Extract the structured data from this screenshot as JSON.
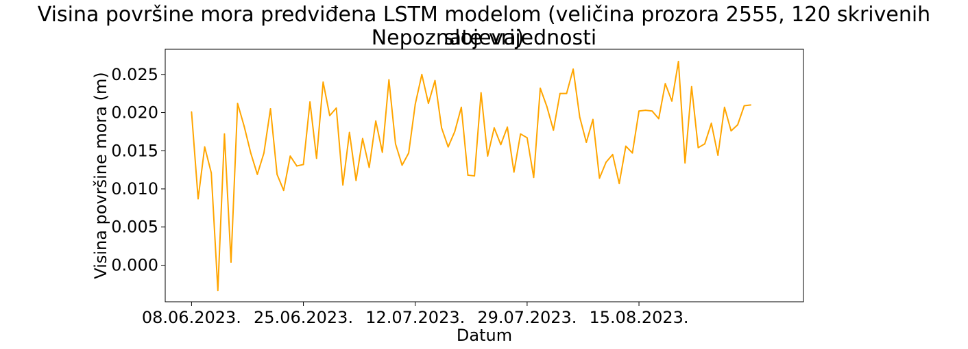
{
  "chart_data": {
    "type": "line",
    "title": "Visina površine mora predviđena LSTM modelom (veličina prozora 2555, 120 skrivenih slojeva)",
    "subtitle": "Nepoznate vrijednosti",
    "xlabel": "Datum",
    "ylabel": "Visina površine mora (m)",
    "x_start": "2023-06-08",
    "x_ticks": [
      {
        "date": "2023-06-08",
        "label": "08.06.2023."
      },
      {
        "date": "2023-06-25",
        "label": "25.06.2023."
      },
      {
        "date": "2023-07-12",
        "label": "12.07.2023."
      },
      {
        "date": "2023-07-29",
        "label": "29.07.2023."
      },
      {
        "date": "2023-08-15",
        "label": "15.08.2023."
      }
    ],
    "y_ticks": [
      {
        "value": 0.0,
        "label": "0.000"
      },
      {
        "value": 0.005,
        "label": "0.005"
      },
      {
        "value": 0.01,
        "label": "0.010"
      },
      {
        "value": 0.015,
        "label": "0.015"
      },
      {
        "value": 0.02,
        "label": "0.020"
      },
      {
        "value": 0.025,
        "label": "0.025"
      }
    ],
    "xlim": [
      "2023-06-04",
      "2023-09-09"
    ],
    "ylim": [
      -0.0048,
      0.0283
    ],
    "grid": false,
    "series": [
      {
        "color": "#FFA500",
        "x": [
          "2023-06-08",
          "2023-06-09",
          "2023-06-10",
          "2023-06-11",
          "2023-06-12",
          "2023-06-13",
          "2023-06-14",
          "2023-06-15",
          "2023-06-16",
          "2023-06-17",
          "2023-06-18",
          "2023-06-19",
          "2023-06-20",
          "2023-06-21",
          "2023-06-22",
          "2023-06-23",
          "2023-06-24",
          "2023-06-25",
          "2023-06-26",
          "2023-06-27",
          "2023-06-28",
          "2023-06-29",
          "2023-06-30",
          "2023-07-01",
          "2023-07-02",
          "2023-07-03",
          "2023-07-04",
          "2023-07-05",
          "2023-07-06",
          "2023-07-07",
          "2023-07-08",
          "2023-07-09",
          "2023-07-10",
          "2023-07-11",
          "2023-07-12",
          "2023-07-13",
          "2023-07-14",
          "2023-07-15",
          "2023-07-16",
          "2023-07-17",
          "2023-07-18",
          "2023-07-19",
          "2023-07-20",
          "2023-07-21",
          "2023-07-22",
          "2023-07-23",
          "2023-07-24",
          "2023-07-25",
          "2023-07-26",
          "2023-07-27",
          "2023-07-28",
          "2023-07-29",
          "2023-07-30",
          "2023-07-31",
          "2023-08-01",
          "2023-08-02",
          "2023-08-03",
          "2023-08-04",
          "2023-08-05",
          "2023-08-06",
          "2023-08-07",
          "2023-08-08",
          "2023-08-09",
          "2023-08-10",
          "2023-08-11",
          "2023-08-12",
          "2023-08-13",
          "2023-08-14",
          "2023-08-15",
          "2023-08-16",
          "2023-08-17",
          "2023-08-18",
          "2023-08-19",
          "2023-08-20",
          "2023-08-21",
          "2023-08-22",
          "2023-08-23",
          "2023-08-24",
          "2023-08-25",
          "2023-08-26",
          "2023-08-27",
          "2023-08-28",
          "2023-08-29",
          "2023-08-30",
          "2023-08-31",
          "2023-09-01"
        ],
        "y": [
          0.0201,
          0.0087,
          0.0155,
          0.0121,
          -0.0033,
          0.0172,
          0.0004,
          0.0212,
          0.0182,
          0.0147,
          0.0119,
          0.0147,
          0.0205,
          0.0119,
          0.0098,
          0.0143,
          0.013,
          0.0132,
          0.0214,
          0.014,
          0.024,
          0.0196,
          0.0206,
          0.0105,
          0.0174,
          0.0111,
          0.0166,
          0.0128,
          0.0189,
          0.0148,
          0.0243,
          0.0159,
          0.0131,
          0.0147,
          0.0211,
          0.025,
          0.0212,
          0.0242,
          0.018,
          0.0155,
          0.0175,
          0.0207,
          0.0118,
          0.0117,
          0.0226,
          0.0143,
          0.018,
          0.0158,
          0.0181,
          0.0122,
          0.0172,
          0.0167,
          0.0115,
          0.0232,
          0.0208,
          0.0177,
          0.0225,
          0.0225,
          0.0257,
          0.0194,
          0.0161,
          0.0191,
          0.0114,
          0.0135,
          0.0145,
          0.0107,
          0.0156,
          0.0147,
          0.0202,
          0.0203,
          0.0202,
          0.0192,
          0.0238,
          0.0215,
          0.0267,
          0.0134,
          0.0234,
          0.0154,
          0.0159,
          0.0186,
          0.0144,
          0.0207,
          0.0176,
          0.0184,
          0.0209,
          0.021
        ]
      }
    ]
  }
}
